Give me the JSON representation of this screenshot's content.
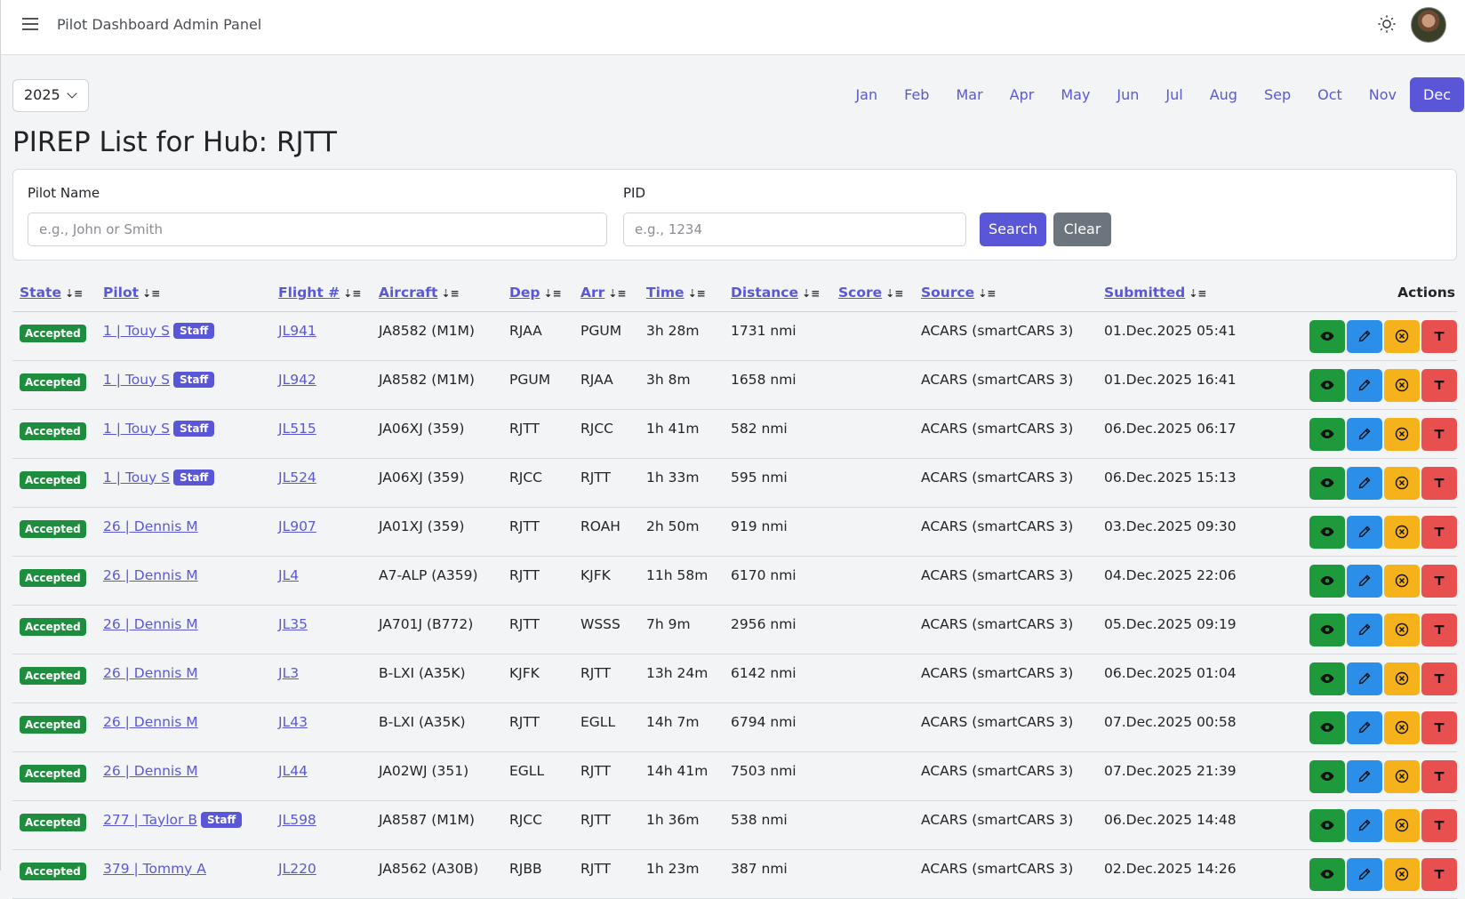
{
  "nav": {
    "pilot_dashboard": "Pilot Dashboard",
    "admin_panel": "Admin Panel"
  },
  "year": "2025",
  "months": [
    "Jan",
    "Feb",
    "Mar",
    "Apr",
    "May",
    "Jun",
    "Jul",
    "Aug",
    "Sep",
    "Oct",
    "Nov",
    "Dec"
  ],
  "active_month": "Dec",
  "title": "PIREP List for Hub: RJTT",
  "filters": {
    "pilot_label": "Pilot Name",
    "pilot_placeholder": "e.g., John or Smith",
    "pid_label": "PID",
    "pid_placeholder": "e.g., 1234",
    "search": "Search",
    "clear": "Clear"
  },
  "columns": [
    "State",
    "Pilot",
    "Flight #",
    "Aircraft",
    "Dep",
    "Arr",
    "Time",
    "Distance",
    "Score",
    "Source",
    "Submitted",
    "Actions"
  ],
  "rows": [
    {
      "state": "Accepted",
      "pilot": "1 | Touy S",
      "staff": "Staff",
      "flight": "JL941",
      "aircraft": "JA8582 (M1M)",
      "dep": "RJAA",
      "arr": "PGUM",
      "time": "3h 28m",
      "distance": "1731 nmi",
      "score": "",
      "source": "ACARS (smartCARS 3)",
      "submitted": "01.Dec.2025 05:41"
    },
    {
      "state": "Accepted",
      "pilot": "1 | Touy S",
      "staff": "Staff",
      "flight": "JL942",
      "aircraft": "JA8582 (M1M)",
      "dep": "PGUM",
      "arr": "RJAA",
      "time": "3h 8m",
      "distance": "1658 nmi",
      "score": "",
      "source": "ACARS (smartCARS 3)",
      "submitted": "01.Dec.2025 16:41"
    },
    {
      "state": "Accepted",
      "pilot": "1 | Touy S",
      "staff": "Staff",
      "flight": "JL515",
      "aircraft": "JA06XJ (359)",
      "dep": "RJTT",
      "arr": "RJCC",
      "time": "1h 41m",
      "distance": "582 nmi",
      "score": "",
      "source": "ACARS (smartCARS 3)",
      "submitted": "06.Dec.2025 06:17"
    },
    {
      "state": "Accepted",
      "pilot": "1 | Touy S",
      "staff": "Staff",
      "flight": "JL524",
      "aircraft": "JA06XJ (359)",
      "dep": "RJCC",
      "arr": "RJTT",
      "time": "1h 33m",
      "distance": "595 nmi",
      "score": "",
      "source": "ACARS (smartCARS 3)",
      "submitted": "06.Dec.2025 15:13"
    },
    {
      "state": "Accepted",
      "pilot": "26 | Dennis M",
      "staff": "",
      "flight": "JL907",
      "aircraft": "JA01XJ (359)",
      "dep": "RJTT",
      "arr": "ROAH",
      "time": "2h 50m",
      "distance": "919 nmi",
      "score": "",
      "source": "ACARS (smartCARS 3)",
      "submitted": "03.Dec.2025 09:30"
    },
    {
      "state": "Accepted",
      "pilot": "26 | Dennis M",
      "staff": "",
      "flight": "JL4",
      "aircraft": "A7-ALP (A359)",
      "dep": "RJTT",
      "arr": "KJFK",
      "time": "11h 58m",
      "distance": "6170 nmi",
      "score": "",
      "source": "ACARS (smartCARS 3)",
      "submitted": "04.Dec.2025 22:06"
    },
    {
      "state": "Accepted",
      "pilot": "26 | Dennis M",
      "staff": "",
      "flight": "JL35",
      "aircraft": "JA701J (B772)",
      "dep": "RJTT",
      "arr": "WSSS",
      "time": "7h 9m",
      "distance": "2956 nmi",
      "score": "",
      "source": "ACARS (smartCARS 3)",
      "submitted": "05.Dec.2025 09:19"
    },
    {
      "state": "Accepted",
      "pilot": "26 | Dennis M",
      "staff": "",
      "flight": "JL3",
      "aircraft": "B-LXI (A35K)",
      "dep": "KJFK",
      "arr": "RJTT",
      "time": "13h 24m",
      "distance": "6142 nmi",
      "score": "",
      "source": "ACARS (smartCARS 3)",
      "submitted": "06.Dec.2025 01:04"
    },
    {
      "state": "Accepted",
      "pilot": "26 | Dennis M",
      "staff": "",
      "flight": "JL43",
      "aircraft": "B-LXI (A35K)",
      "dep": "RJTT",
      "arr": "EGLL",
      "time": "14h 7m",
      "distance": "6794 nmi",
      "score": "",
      "source": "ACARS (smartCARS 3)",
      "submitted": "07.Dec.2025 00:58"
    },
    {
      "state": "Accepted",
      "pilot": "26 | Dennis M",
      "staff": "",
      "flight": "JL44",
      "aircraft": "JA02WJ (351)",
      "dep": "EGLL",
      "arr": "RJTT",
      "time": "14h 41m",
      "distance": "7503 nmi",
      "score": "",
      "source": "ACARS (smartCARS 3)",
      "submitted": "07.Dec.2025 21:39"
    },
    {
      "state": "Accepted",
      "pilot": "277 | Taylor B",
      "staff": "Staff",
      "flight": "JL598",
      "aircraft": "JA8587 (M1M)",
      "dep": "RJCC",
      "arr": "RJTT",
      "time": "1h 36m",
      "distance": "538 nmi",
      "score": "",
      "source": "ACARS (smartCARS 3)",
      "submitted": "06.Dec.2025 14:48"
    },
    {
      "state": "Accepted",
      "pilot": "379 | Tommy A",
      "staff": "",
      "flight": "JL220",
      "aircraft": "JA8562 (A30B)",
      "dep": "RJBB",
      "arr": "RJTT",
      "time": "1h 23m",
      "distance": "387 nmi",
      "score": "",
      "source": "ACARS (smartCARS 3)",
      "submitted": "02.Dec.2025 14:26"
    }
  ]
}
